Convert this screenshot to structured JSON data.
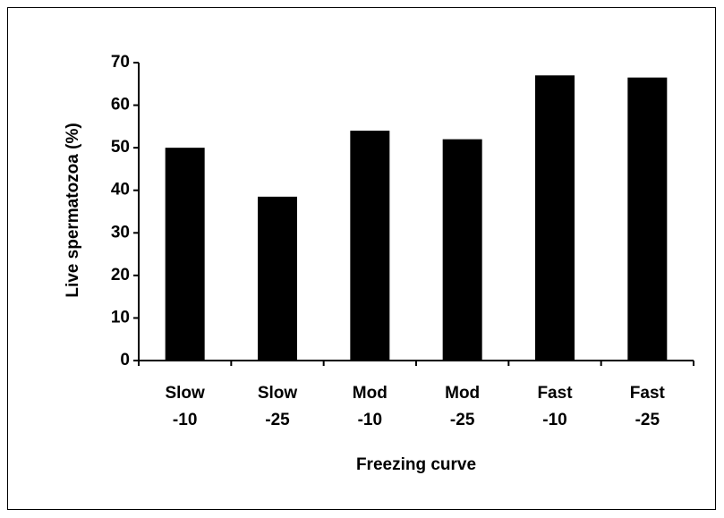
{
  "chart_data": {
    "type": "bar",
    "categories": [
      "Slow\n-10",
      "Slow\n-25",
      "Mod\n-10",
      "Mod\n-25",
      "Fast\n-10",
      "Fast\n-25"
    ],
    "values": [
      50,
      38.5,
      54,
      52,
      67,
      66.5
    ],
    "color": "#000000",
    "y_label": "Live spermatozoa (%)",
    "x_label": "Freezing curve",
    "ylim": [
      0,
      70
    ],
    "yticks": [
      0,
      10,
      20,
      30,
      40,
      50,
      60,
      70
    ],
    "grid": false
  }
}
